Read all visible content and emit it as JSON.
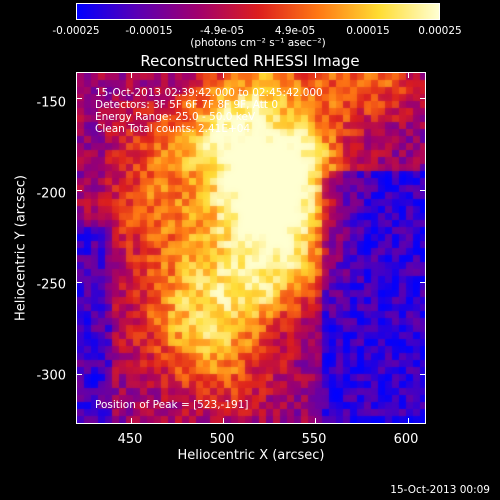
{
  "colorbar": {
    "tick_labels": [
      "-0.00025",
      "-0.00015",
      "-4.9e-05",
      "4.9e-05",
      "0.00015",
      "0.00025"
    ],
    "units": "(photons cm⁻² s⁻¹ asec⁻²)",
    "range": [
      -0.00025,
      0.00025
    ]
  },
  "annotations": {
    "time_range": "15-Oct-2013 02:39:42.000 to 02:45:42.000",
    "detectors": "Detectors: 3F 5F 6F 7F 8F 9F, Att 0",
    "energy": "Energy Range: 25.0 - 50.0 keV",
    "method": "Clean      Total counts: 2.41E+04",
    "peak": "Position of Peak = [523,-191]"
  },
  "footer_date": "15-Oct-2013 00:09",
  "chart_data": {
    "type": "heatmap",
    "title": "Reconstructed RHESSI Image",
    "xlabel": "Heliocentric X (arcsec)",
    "ylabel": "Heliocentric Y (arcsec)",
    "xlim": [
      420,
      610
    ],
    "ylim": [
      -327,
      -136
    ],
    "x_ticks": [
      450,
      500,
      550,
      600
    ],
    "y_ticks": [
      -150,
      -200,
      -250,
      -300
    ],
    "colormap": [
      "#0000ff",
      "#5a00b4",
      "#a0006e",
      "#dc1e1e",
      "#ff7814",
      "#ffdc32",
      "#ffffd2"
    ],
    "peak_position": [
      523,
      -191
    ]
  }
}
